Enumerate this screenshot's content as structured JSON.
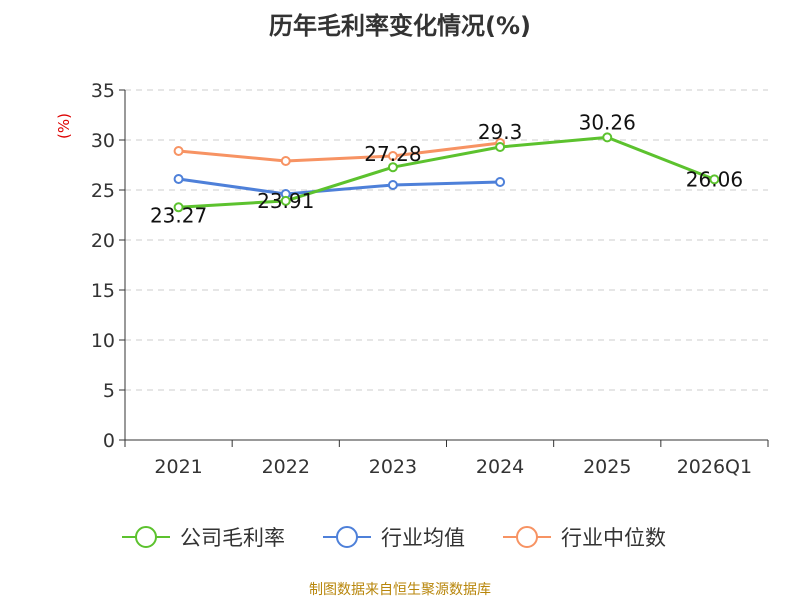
{
  "chart_data": {
    "type": "line",
    "title": "历年毛利率变化情况(%)",
    "ylabel": "(%)",
    "xlabel": "",
    "categories": [
      "2021",
      "2022",
      "2023",
      "2024",
      "2025",
      "2026Q1"
    ],
    "ylim": [
      0,
      35
    ],
    "yticks": [
      0,
      5,
      10,
      15,
      20,
      25,
      30,
      35
    ],
    "grid": true,
    "legend_position": "bottom",
    "series": [
      {
        "name": "公司毛利率",
        "color": "#5cc22e",
        "values": [
          23.27,
          23.91,
          27.28,
          29.3,
          30.26,
          26.06
        ],
        "labels": [
          "23.27",
          "23.91",
          "27.28",
          "29.3",
          "30.26",
          "26.06"
        ]
      },
      {
        "name": "行业均值",
        "color": "#4e80d9",
        "values": [
          26.1,
          24.6,
          25.5,
          25.8,
          null,
          null
        ]
      },
      {
        "name": "行业中位数",
        "color": "#f79363",
        "values": [
          28.9,
          27.9,
          28.4,
          29.7,
          null,
          null
        ]
      }
    ]
  },
  "footer": {
    "source": "制图数据来自恒生聚源数据库"
  }
}
